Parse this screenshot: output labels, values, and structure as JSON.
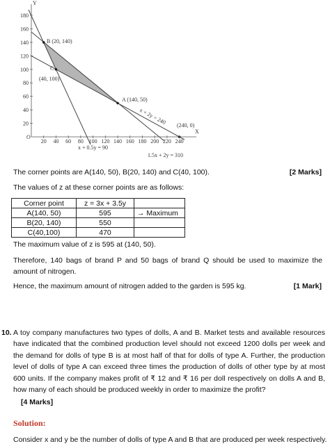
{
  "figure": {
    "axis_labels": {
      "x": "X",
      "y": "Y",
      "origin": "O"
    },
    "yticks": [
      "20",
      "40",
      "60",
      "80",
      "100",
      "120",
      "140",
      "160",
      "180"
    ],
    "xticks": [
      "20",
      "40",
      "60",
      "80",
      "100",
      "120",
      "140",
      "160",
      "180",
      "200",
      "220",
      "240"
    ],
    "point_labels": {
      "b": "B (20, 140)",
      "c": "C",
      "c_coords": "(40, 100)",
      "a": "A (140, 50)",
      "x_intercept": "(240, 0)"
    },
    "line_labels": [
      "x + 2y = 240",
      "x + 0.5y = 90",
      "1.5x + 2y = 310"
    ]
  },
  "corner_points": {
    "text": "The corner points are A(140, 50), B(20, 140) and C(40, 100).",
    "marks": "[2 Marks]"
  },
  "values_intro": "The values of z at these corner points are as follows:",
  "table": {
    "header": [
      "Corner point",
      "z = 3x + 3.5y"
    ],
    "rows": [
      [
        "A(140, 50)",
        "595",
        "→ Maximum"
      ],
      [
        "B(20, 140)",
        "550"
      ],
      [
        "C(40,100)",
        "470"
      ]
    ]
  },
  "max_value": "The maximum value of z is 595 at (140, 50).",
  "therefore": "Therefore, 140 bags of brand P and 50 bags of brand Q should be used to maximize the amount of nitrogen.",
  "hence": {
    "text": "Hence, the maximum amount of nitrogen added to the garden is 595 kg.",
    "marks": "[1 Mark]"
  },
  "question": {
    "number": "10.",
    "text": "A toy company manufactures two types of dolls, A and B. Market tests and available resources have indicated that the combined production level should not exceed 1200 dolls per week and the demand for dolls of type B is at most half of that for dolls of type A. Further, the production level of dolls of type A can exceed three times the production of dolls of other type by at most 600 units. If the company makes profit of ₹ 12 and ₹ 16 per doll respectively on dolls A and B, how many of each should be produced weekly in order to maximize the profit?",
    "marks": "[4 Marks]"
  },
  "solution": {
    "heading": "Solution:",
    "text": "Consider x and y be the number of dolls of type A and B that are produced per week respectively."
  }
}
